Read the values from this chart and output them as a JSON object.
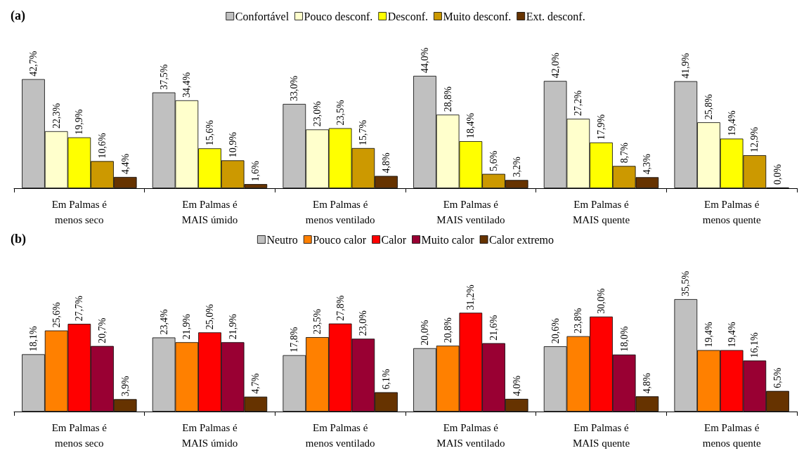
{
  "chart_data": [
    {
      "type": "bar",
      "title": "(a)",
      "legend": "top",
      "categories": [
        "Em Palmas é\nmenos seco",
        "Em Palmas é\nMAIS úmido",
        "Em Palmas é\nmenos ventilado",
        "Em Palmas é\nMAIS ventilado",
        "Em Palmas é\nMAIS quente",
        "Em Palmas é\nmenos quente"
      ],
      "series": [
        {
          "name": "Confortável",
          "color": "#c0c0c0",
          "values": [
            42.7,
            37.5,
            33.0,
            44.0,
            42.0,
            41.9
          ],
          "value_labels": [
            "42,7%",
            "37,5%",
            "33,0%",
            "44,0%",
            "42,0%",
            "41,9%"
          ]
        },
        {
          "name": "Pouco desconf.",
          "color": "#ffffcc",
          "values": [
            22.3,
            34.4,
            23.0,
            28.8,
            27.2,
            25.8
          ],
          "value_labels": [
            "22,3%",
            "34,4%",
            "23,0%",
            "28,8%",
            "27,2%",
            "25,8%"
          ]
        },
        {
          "name": "Desconf.",
          "color": "#ffff00",
          "values": [
            19.9,
            15.6,
            23.5,
            18.4,
            17.9,
            19.4
          ],
          "value_labels": [
            "19,9%",
            "15,6%",
            "23,5%",
            "18,4%",
            "17,9%",
            "19,4%"
          ]
        },
        {
          "name": "Muito desconf.",
          "color": "#cc9900",
          "values": [
            10.6,
            10.9,
            15.7,
            5.6,
            8.7,
            12.9
          ],
          "value_labels": [
            "10,6%",
            "10,9%",
            "15,7%",
            "5,6%",
            "8,7%",
            "12,9%"
          ]
        },
        {
          "name": "Ext. desconf.",
          "color": "#663300",
          "values": [
            4.4,
            1.6,
            4.8,
            3.2,
            4.3,
            0.0
          ],
          "value_labels": [
            "4,4%",
            "1,6%",
            "4,8%",
            "3,2%",
            "4,3%",
            "0,0%"
          ]
        }
      ]
    },
    {
      "type": "bar",
      "title": "(b)",
      "legend": "top",
      "categories": [
        "Em Palmas é\nmenos seco",
        "Em Palmas é\nMAIS úmido",
        "Em Palmas é\nmenos ventilado",
        "Em Palmas é\nMAIS ventilado",
        "Em Palmas é\nMAIS quente",
        "Em Palmas é\nmenos quente"
      ],
      "series": [
        {
          "name": "Neutro",
          "color": "#c0c0c0",
          "values": [
            18.1,
            23.4,
            17.8,
            20.0,
            20.6,
            35.5
          ],
          "value_labels": [
            "18,1%",
            "23,4%",
            "17,8%",
            "20,0%",
            "20,6%",
            "35,5%"
          ]
        },
        {
          "name": "Pouco calor",
          "color": "#ff8000",
          "values": [
            25.6,
            21.9,
            23.5,
            20.8,
            23.8,
            19.4
          ],
          "value_labels": [
            "25,6%",
            "21,9%",
            "23,5%",
            "20,8%",
            "23,8%",
            "19,4%"
          ]
        },
        {
          "name": "Calor",
          "color": "#ff0000",
          "values": [
            27.7,
            25.0,
            27.8,
            31.2,
            30.0,
            19.4
          ],
          "value_labels": [
            "27,7%",
            "25,0%",
            "27,8%",
            "31,2%",
            "30,0%",
            "19,4%"
          ]
        },
        {
          "name": "Muito calor",
          "color": "#990033",
          "values": [
            20.7,
            21.9,
            23.0,
            21.6,
            18.0,
            16.1
          ],
          "value_labels": [
            "20,7%",
            "21,9%",
            "23,0%",
            "21,6%",
            "18,0%",
            "16,1%"
          ]
        },
        {
          "name": "Calor extremo",
          "color": "#663300",
          "values": [
            3.9,
            4.7,
            6.1,
            4.0,
            4.8,
            6.5
          ],
          "value_labels": [
            "3,9%",
            "4,7%",
            "6,1%",
            "4,0%",
            "4,8%",
            "6,5%"
          ]
        }
      ]
    }
  ]
}
